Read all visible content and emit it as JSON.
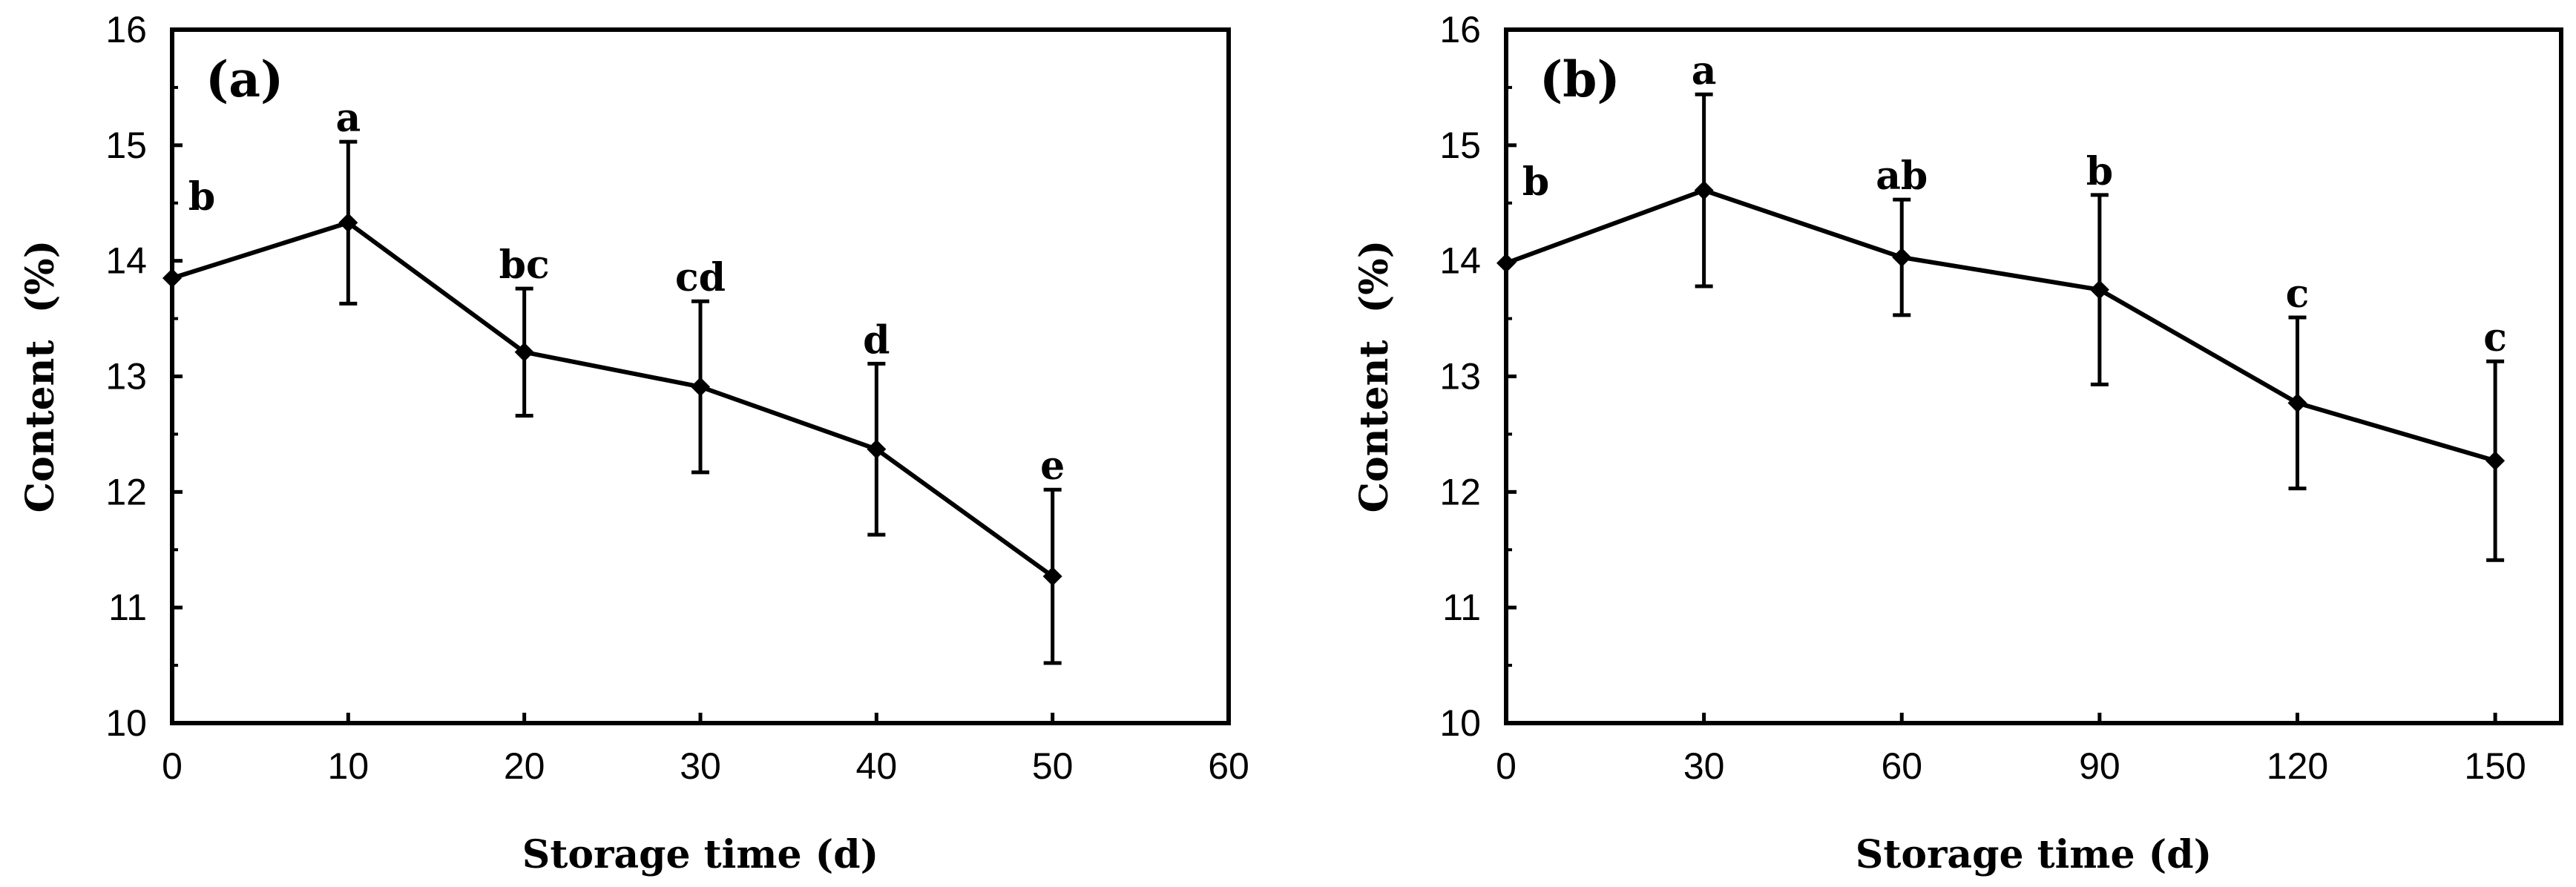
{
  "chart_data": [
    {
      "type": "line",
      "panel_label": "(a)",
      "xlabel": "Storage time (d)",
      "ylabel": "Content  (%)",
      "xlim": [
        0,
        60
      ],
      "ylim": [
        10,
        16
      ],
      "xticks": [
        0,
        10,
        20,
        30,
        40,
        50,
        60
      ],
      "yticks": [
        10,
        11,
        12,
        13,
        14,
        15,
        16
      ],
      "grid": false,
      "series": [
        {
          "x": [
            0,
            10,
            20,
            30,
            40,
            50
          ],
          "y": [
            13.85,
            14.33,
            13.21,
            12.91,
            12.37,
            11.27
          ],
          "error": [
            0.0,
            0.7,
            0.55,
            0.74,
            0.74,
            0.75
          ],
          "labels": [
            "b",
            "a",
            "bc",
            "cd",
            "d",
            "e"
          ]
        }
      ]
    },
    {
      "type": "line",
      "panel_label": "(b)",
      "xlabel": "Storage time (d)",
      "ylabel": "Content  (%)",
      "xlim": [
        0,
        160
      ],
      "ylim": [
        10,
        16
      ],
      "xticks": [
        0,
        30,
        60,
        90,
        120,
        150
      ],
      "yticks": [
        10,
        11,
        12,
        13,
        14,
        15,
        16
      ],
      "grid": false,
      "series": [
        {
          "x": [
            0,
            30,
            60,
            90,
            120,
            150
          ],
          "y": [
            13.98,
            14.61,
            14.03,
            13.75,
            12.77,
            12.27
          ],
          "error": [
            0.0,
            0.83,
            0.5,
            0.82,
            0.74,
            0.86
          ],
          "labels": [
            "b",
            "a",
            "ab",
            "b",
            "c",
            "c"
          ]
        }
      ]
    }
  ]
}
